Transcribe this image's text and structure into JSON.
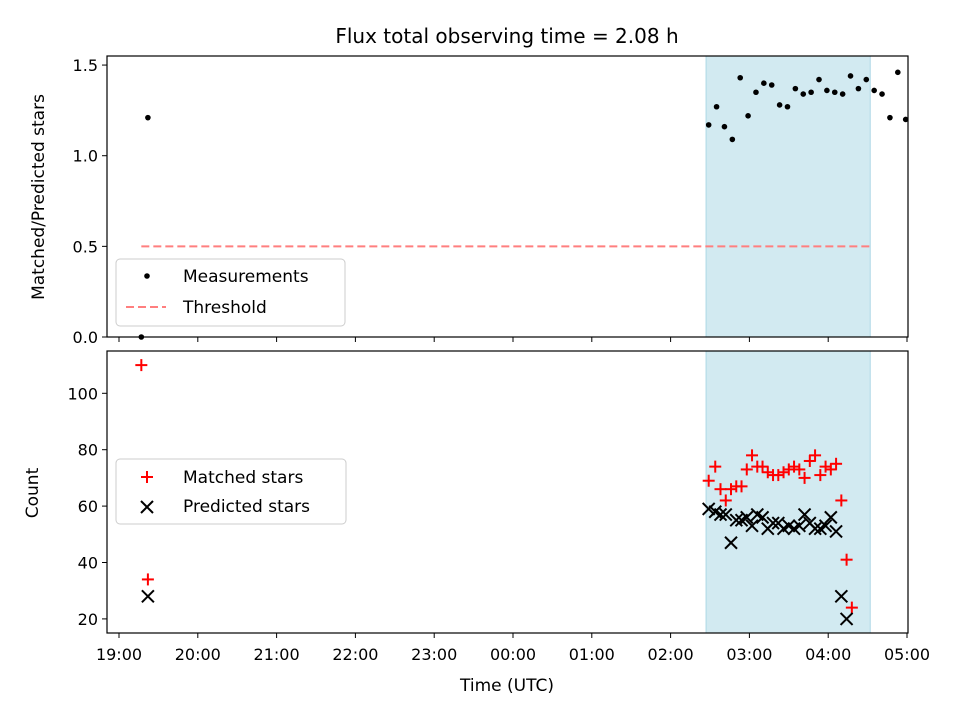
{
  "chart_data": [
    {
      "type": "scatter",
      "title": "Flux total observing time = 2.08 h",
      "ylabel": "Matched/Predicted stars",
      "xlim": [
        "19:00",
        "05:00"
      ],
      "ylim": [
        0,
        1.55
      ],
      "yticks": [
        "0.0",
        "0.5",
        "1.0",
        "1.5"
      ],
      "shaded_interval": [
        "02:27",
        "04:32"
      ],
      "legend": {
        "placement": "lower-left",
        "entries": [
          "Measurements",
          "Threshold"
        ]
      },
      "series": [
        {
          "name": "Measurements",
          "marker": "dot",
          "color": "#000000",
          "points": [
            [
              "19:17",
              0.0
            ],
            [
              "19:22",
              1.21
            ],
            [
              "02:29",
              1.17
            ],
            [
              "02:35",
              1.27
            ],
            [
              "02:41",
              1.16
            ],
            [
              "02:47",
              1.09
            ],
            [
              "02:53",
              1.43
            ],
            [
              "02:59",
              1.22
            ],
            [
              "03:05",
              1.35
            ],
            [
              "03:11",
              1.4
            ],
            [
              "03:17",
              1.39
            ],
            [
              "03:23",
              1.28
            ],
            [
              "03:29",
              1.27
            ],
            [
              "03:35",
              1.37
            ],
            [
              "03:41",
              1.34
            ],
            [
              "03:47",
              1.35
            ],
            [
              "03:53",
              1.42
            ],
            [
              "03:59",
              1.36
            ],
            [
              "04:05",
              1.35
            ],
            [
              "04:11",
              1.34
            ],
            [
              "04:17",
              1.44
            ],
            [
              "04:23",
              1.37
            ],
            [
              "04:29",
              1.42
            ],
            [
              "04:35",
              1.36
            ],
            [
              "04:41",
              1.34
            ],
            [
              "04:47",
              1.21
            ],
            [
              "04:53",
              1.46
            ],
            [
              "04:59",
              1.2
            ]
          ]
        },
        {
          "name": "Threshold",
          "style": "dashed",
          "color": "#ff7f7f",
          "x": [
            "19:17",
            "04:32"
          ],
          "y": 0.5
        }
      ]
    },
    {
      "type": "scatter",
      "xlabel": "Time (UTC)",
      "ylabel": "Count",
      "xlim": [
        "19:00",
        "05:00"
      ],
      "xticks": [
        "19:00",
        "20:00",
        "21:00",
        "22:00",
        "23:00",
        "00:00",
        "01:00",
        "02:00",
        "03:00",
        "04:00",
        "05:00"
      ],
      "ylim": [
        15,
        115
      ],
      "yticks": [
        "20",
        "40",
        "60",
        "80",
        "100"
      ],
      "shaded_interval": [
        "02:27",
        "04:32"
      ],
      "legend": {
        "placement": "center-left",
        "entries": [
          "Matched stars",
          "Predicted stars"
        ]
      },
      "series": [
        {
          "name": "Matched stars",
          "marker": "plus",
          "color": "#ff0000",
          "points": [
            [
              "19:17",
              110
            ],
            [
              "19:22",
              34
            ],
            [
              "02:29",
              69
            ],
            [
              "02:34",
              74
            ],
            [
              "02:38",
              66
            ],
            [
              "02:42",
              62
            ],
            [
              "02:46",
              66
            ],
            [
              "02:50",
              67
            ],
            [
              "02:54",
              67
            ],
            [
              "02:58",
              73
            ],
            [
              "03:02",
              78
            ],
            [
              "03:06",
              74
            ],
            [
              "03:10",
              74
            ],
            [
              "03:14",
              72
            ],
            [
              "03:18",
              71
            ],
            [
              "03:22",
              71
            ],
            [
              "03:26",
              72
            ],
            [
              "03:30",
              73
            ],
            [
              "03:34",
              74
            ],
            [
              "03:38",
              73
            ],
            [
              "03:42",
              70
            ],
            [
              "03:46",
              76
            ],
            [
              "03:50",
              78
            ],
            [
              "03:54",
              71
            ],
            [
              "03:58",
              74
            ],
            [
              "04:02",
              73
            ],
            [
              "04:06",
              75
            ],
            [
              "04:10",
              62
            ],
            [
              "04:14",
              41
            ],
            [
              "04:18",
              24
            ]
          ]
        },
        {
          "name": "Predicted stars",
          "marker": "x",
          "color": "#000000",
          "points": [
            [
              "19:22",
              28
            ],
            [
              "02:29",
              59
            ],
            [
              "02:34",
              58
            ],
            [
              "02:38",
              57
            ],
            [
              "02:42",
              57
            ],
            [
              "02:46",
              47
            ],
            [
              "02:50",
              55
            ],
            [
              "02:54",
              55
            ],
            [
              "02:58",
              56
            ],
            [
              "03:02",
              53
            ],
            [
              "03:06",
              57
            ],
            [
              "03:10",
              56
            ],
            [
              "03:14",
              52
            ],
            [
              "03:18",
              54
            ],
            [
              "03:22",
              54
            ],
            [
              "03:26",
              52
            ],
            [
              "03:30",
              53
            ],
            [
              "03:34",
              52
            ],
            [
              "03:38",
              53
            ],
            [
              "03:42",
              57
            ],
            [
              "03:46",
              54
            ],
            [
              "03:50",
              52
            ],
            [
              "03:54",
              52
            ],
            [
              "03:58",
              53
            ],
            [
              "04:02",
              56
            ],
            [
              "04:06",
              51
            ],
            [
              "04:10",
              28
            ],
            [
              "04:14",
              20
            ]
          ]
        }
      ]
    }
  ],
  "colors": {
    "shade": "#add8e6",
    "matched": "#ff0000",
    "predicted": "#000000",
    "threshold": "#ff7f7f"
  }
}
